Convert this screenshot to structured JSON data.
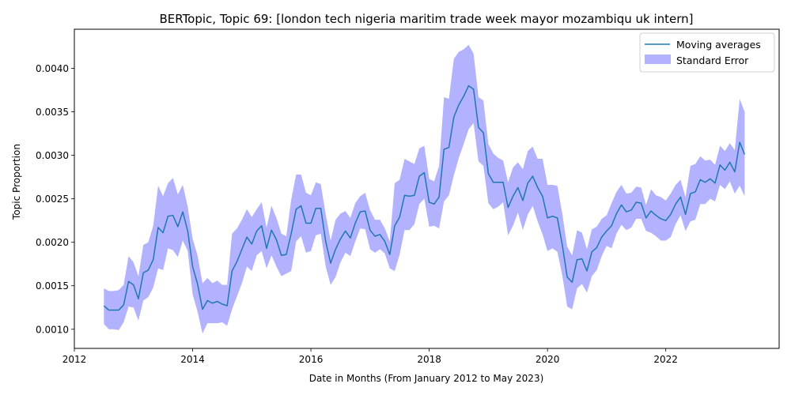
{
  "chart_data": {
    "type": "line",
    "title": "BERTopic, Topic 69: [london tech nigeria maritim trade week mayor mozambiqu uk intern]",
    "xlabel": "Date in Months (From January 2012 to May 2023)",
    "ylabel": "Topic Proportion",
    "xlim": [
      "2012-01",
      "2023-12"
    ],
    "ylim": [
      0.00078,
      0.00445
    ],
    "x_ticks": [
      "2012",
      "2014",
      "2016",
      "2018",
      "2020",
      "2022"
    ],
    "y_ticks": [
      "0.0010",
      "0.0015",
      "0.0020",
      "0.0025",
      "0.0030",
      "0.0035",
      "0.0040"
    ],
    "grid": false,
    "legend_position": "top-right",
    "colors": {
      "line": "#1f77b4",
      "band": "#0000ff"
    },
    "series": [
      {
        "name": "Moving averages",
        "kind": "line",
        "x": [
          "2012-07",
          "2012-08",
          "2012-09",
          "2012-10",
          "2012-11",
          "2012-12",
          "2013-01",
          "2013-02",
          "2013-03",
          "2013-04",
          "2013-05",
          "2013-06",
          "2013-07",
          "2013-08",
          "2013-09",
          "2013-10",
          "2013-11",
          "2013-12",
          "2014-01",
          "2014-02",
          "2014-03",
          "2014-04",
          "2014-05",
          "2014-06",
          "2014-07",
          "2014-08",
          "2014-09",
          "2014-10",
          "2014-11",
          "2014-12",
          "2015-01",
          "2015-02",
          "2015-03",
          "2015-04",
          "2015-05",
          "2015-06",
          "2015-07",
          "2015-08",
          "2015-09",
          "2015-10",
          "2015-11",
          "2015-12",
          "2016-01",
          "2016-02",
          "2016-03",
          "2016-04",
          "2016-05",
          "2016-06",
          "2016-07",
          "2016-08",
          "2016-09",
          "2016-10",
          "2016-11",
          "2016-12",
          "2017-01",
          "2017-02",
          "2017-03",
          "2017-04",
          "2017-05",
          "2017-06",
          "2017-07",
          "2017-08",
          "2017-09",
          "2017-10",
          "2017-11",
          "2017-12",
          "2018-01",
          "2018-02",
          "2018-03",
          "2018-04",
          "2018-05",
          "2018-06",
          "2018-07",
          "2018-08",
          "2018-09",
          "2018-10",
          "2018-11",
          "2018-12",
          "2019-01",
          "2019-02",
          "2019-03",
          "2019-04",
          "2019-05",
          "2019-06",
          "2019-07",
          "2019-08",
          "2019-09",
          "2019-10",
          "2019-11",
          "2019-12",
          "2020-01",
          "2020-02",
          "2020-03",
          "2020-04",
          "2020-05",
          "2020-06",
          "2020-07",
          "2020-08",
          "2020-09",
          "2020-10",
          "2020-11",
          "2020-12",
          "2021-01",
          "2021-02",
          "2021-03",
          "2021-04",
          "2021-05",
          "2021-06",
          "2021-07",
          "2021-08",
          "2021-09",
          "2021-10",
          "2021-11",
          "2021-12",
          "2022-01",
          "2022-02",
          "2022-03",
          "2022-04",
          "2022-05",
          "2022-06",
          "2022-07",
          "2022-08",
          "2022-09",
          "2022-10",
          "2022-11",
          "2022-12",
          "2023-01",
          "2023-02",
          "2023-03",
          "2023-04",
          "2023-05"
        ],
        "values": [
          0.00127,
          0.00122,
          0.00122,
          0.00122,
          0.00128,
          0.00155,
          0.00151,
          0.00135,
          0.00165,
          0.00168,
          0.0018,
          0.00217,
          0.00211,
          0.0023,
          0.00231,
          0.00218,
          0.00235,
          0.00213,
          0.00172,
          0.00152,
          0.00123,
          0.00133,
          0.0013,
          0.00132,
          0.00129,
          0.00127,
          0.00167,
          0.00178,
          0.00192,
          0.00206,
          0.00198,
          0.00213,
          0.00219,
          0.00193,
          0.00214,
          0.00203,
          0.00185,
          0.00186,
          0.0021,
          0.00238,
          0.00242,
          0.00222,
          0.00222,
          0.00239,
          0.00239,
          0.00201,
          0.00176,
          0.00192,
          0.00204,
          0.00213,
          0.00205,
          0.00222,
          0.00235,
          0.00236,
          0.00214,
          0.00207,
          0.00209,
          0.00201,
          0.00186,
          0.00219,
          0.00229,
          0.00254,
          0.00253,
          0.00254,
          0.00276,
          0.0028,
          0.00246,
          0.00244,
          0.00252,
          0.00307,
          0.00309,
          0.00344,
          0.00358,
          0.00368,
          0.0038,
          0.00376,
          0.00332,
          0.00326,
          0.00279,
          0.00269,
          0.00269,
          0.00269,
          0.0024,
          0.00253,
          0.00263,
          0.00248,
          0.00268,
          0.00276,
          0.00263,
          0.00253,
          0.00228,
          0.0023,
          0.00228,
          0.00197,
          0.0016,
          0.00154,
          0.0018,
          0.00181,
          0.00167,
          0.00189,
          0.00194,
          0.00206,
          0.00213,
          0.00219,
          0.00233,
          0.00243,
          0.00235,
          0.00237,
          0.00246,
          0.00245,
          0.00228,
          0.00236,
          0.00231,
          0.00227,
          0.00225,
          0.00232,
          0.00244,
          0.00252,
          0.00232,
          0.00256,
          0.00258,
          0.00272,
          0.00269,
          0.00273,
          0.00268,
          0.00289,
          0.00283,
          0.00292,
          0.00281,
          0.00315,
          0.00301
        ]
      },
      {
        "name": "Standard Error",
        "kind": "band",
        "lower": [
          0.00106,
          0.001,
          0.001,
          0.00099,
          0.00108,
          0.00126,
          0.00125,
          0.0011,
          0.00133,
          0.00137,
          0.00148,
          0.0017,
          0.00168,
          0.00193,
          0.00191,
          0.00183,
          0.00202,
          0.0019,
          0.0014,
          0.0012,
          0.00095,
          0.00107,
          0.00107,
          0.00107,
          0.00108,
          0.00104,
          0.00123,
          0.00138,
          0.00153,
          0.00172,
          0.00167,
          0.00185,
          0.0019,
          0.0017,
          0.00185,
          0.00172,
          0.00161,
          0.00164,
          0.00167,
          0.00201,
          0.00207,
          0.00188,
          0.0019,
          0.00208,
          0.0021,
          0.00172,
          0.00151,
          0.0016,
          0.00177,
          0.00188,
          0.00184,
          0.00201,
          0.00216,
          0.00215,
          0.00192,
          0.00188,
          0.00192,
          0.00187,
          0.0017,
          0.00167,
          0.00186,
          0.00214,
          0.00214,
          0.00221,
          0.00244,
          0.0025,
          0.00218,
          0.00219,
          0.00216,
          0.00247,
          0.00254,
          0.00277,
          0.00297,
          0.00313,
          0.0033,
          0.00337,
          0.00293,
          0.00288,
          0.00245,
          0.00238,
          0.00241,
          0.00246,
          0.00208,
          0.00219,
          0.00234,
          0.00214,
          0.00232,
          0.00242,
          0.00224,
          0.00209,
          0.0019,
          0.00193,
          0.00189,
          0.00162,
          0.00126,
          0.00123,
          0.00147,
          0.00152,
          0.00142,
          0.00161,
          0.00168,
          0.00184,
          0.00196,
          0.00193,
          0.0021,
          0.0022,
          0.00214,
          0.00217,
          0.00227,
          0.00227,
          0.00213,
          0.00211,
          0.00207,
          0.00202,
          0.00202,
          0.00206,
          0.00221,
          0.00231,
          0.00213,
          0.00224,
          0.00226,
          0.00244,
          0.00244,
          0.0025,
          0.00247,
          0.00266,
          0.00261,
          0.0027,
          0.00256,
          0.00265,
          0.00253
        ],
        "upper": [
          0.00147,
          0.00144,
          0.00144,
          0.00145,
          0.00151,
          0.00184,
          0.00177,
          0.00161,
          0.00197,
          0.002,
          0.00219,
          0.00265,
          0.00253,
          0.00268,
          0.00274,
          0.00255,
          0.00266,
          0.00241,
          0.00204,
          0.00185,
          0.00153,
          0.00159,
          0.00153,
          0.00156,
          0.00151,
          0.00151,
          0.0021,
          0.00216,
          0.00226,
          0.00238,
          0.00229,
          0.00238,
          0.00246,
          0.00217,
          0.00242,
          0.00228,
          0.0021,
          0.00207,
          0.00249,
          0.00278,
          0.00278,
          0.00257,
          0.00254,
          0.00269,
          0.00267,
          0.00232,
          0.00202,
          0.00226,
          0.00233,
          0.00236,
          0.00228,
          0.00245,
          0.00253,
          0.00257,
          0.00237,
          0.00226,
          0.00226,
          0.00216,
          0.00201,
          0.00268,
          0.00272,
          0.00296,
          0.00293,
          0.0029,
          0.00308,
          0.00311,
          0.00273,
          0.0027,
          0.00288,
          0.00367,
          0.00365,
          0.00411,
          0.00419,
          0.00422,
          0.00427,
          0.00417,
          0.00367,
          0.00363,
          0.00313,
          0.00302,
          0.00297,
          0.00294,
          0.00269,
          0.00286,
          0.00292,
          0.00284,
          0.00305,
          0.0031,
          0.00296,
          0.00296,
          0.00266,
          0.00266,
          0.00265,
          0.00233,
          0.00195,
          0.00185,
          0.00214,
          0.00211,
          0.00192,
          0.00215,
          0.00218,
          0.00227,
          0.00231,
          0.00245,
          0.00258,
          0.00266,
          0.00256,
          0.00257,
          0.00264,
          0.00263,
          0.00243,
          0.00261,
          0.00254,
          0.00252,
          0.00248,
          0.00256,
          0.00266,
          0.00272,
          0.00252,
          0.00288,
          0.0029,
          0.00299,
          0.00294,
          0.00295,
          0.00289,
          0.00311,
          0.00305,
          0.00314,
          0.00306,
          0.00365,
          0.0035
        ]
      }
    ]
  }
}
